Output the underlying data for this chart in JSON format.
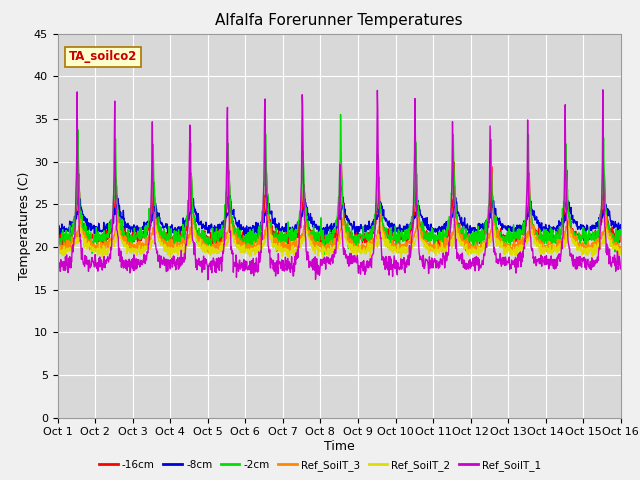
{
  "title": "Alfalfa Forerunner Temperatures",
  "xlabel": "Time",
  "ylabel": "Temperatures (C)",
  "ylim": [
    0,
    45
  ],
  "xlim": [
    0,
    15
  ],
  "annotation": "TA_soilco2",
  "legend_labels": [
    "-16cm",
    "-8cm",
    "-2cm",
    "Ref_SoilT_3",
    "Ref_SoilT_2",
    "Ref_SoilT_1"
  ],
  "legend_colors": [
    "#ff0000",
    "#0000dd",
    "#00dd00",
    "#ff8800",
    "#dddd00",
    "#cc00cc"
  ],
  "xtick_labels": [
    "Oct 1",
    "Oct 2",
    "Oct 3",
    "Oct 4",
    "Oct 5",
    "Oct 6",
    "Oct 7",
    "Oct 8",
    "Oct 9",
    "Oct 10",
    "Oct 11",
    "Oct 12",
    "Oct 13",
    "Oct 14",
    "Oct 15",
    "Oct 16"
  ],
  "plot_bg_outer": "#e8e8e8",
  "plot_bg_inner": "#d8d8d8",
  "title_fontsize": 11,
  "tick_fontsize": 8,
  "label_fontsize": 9
}
